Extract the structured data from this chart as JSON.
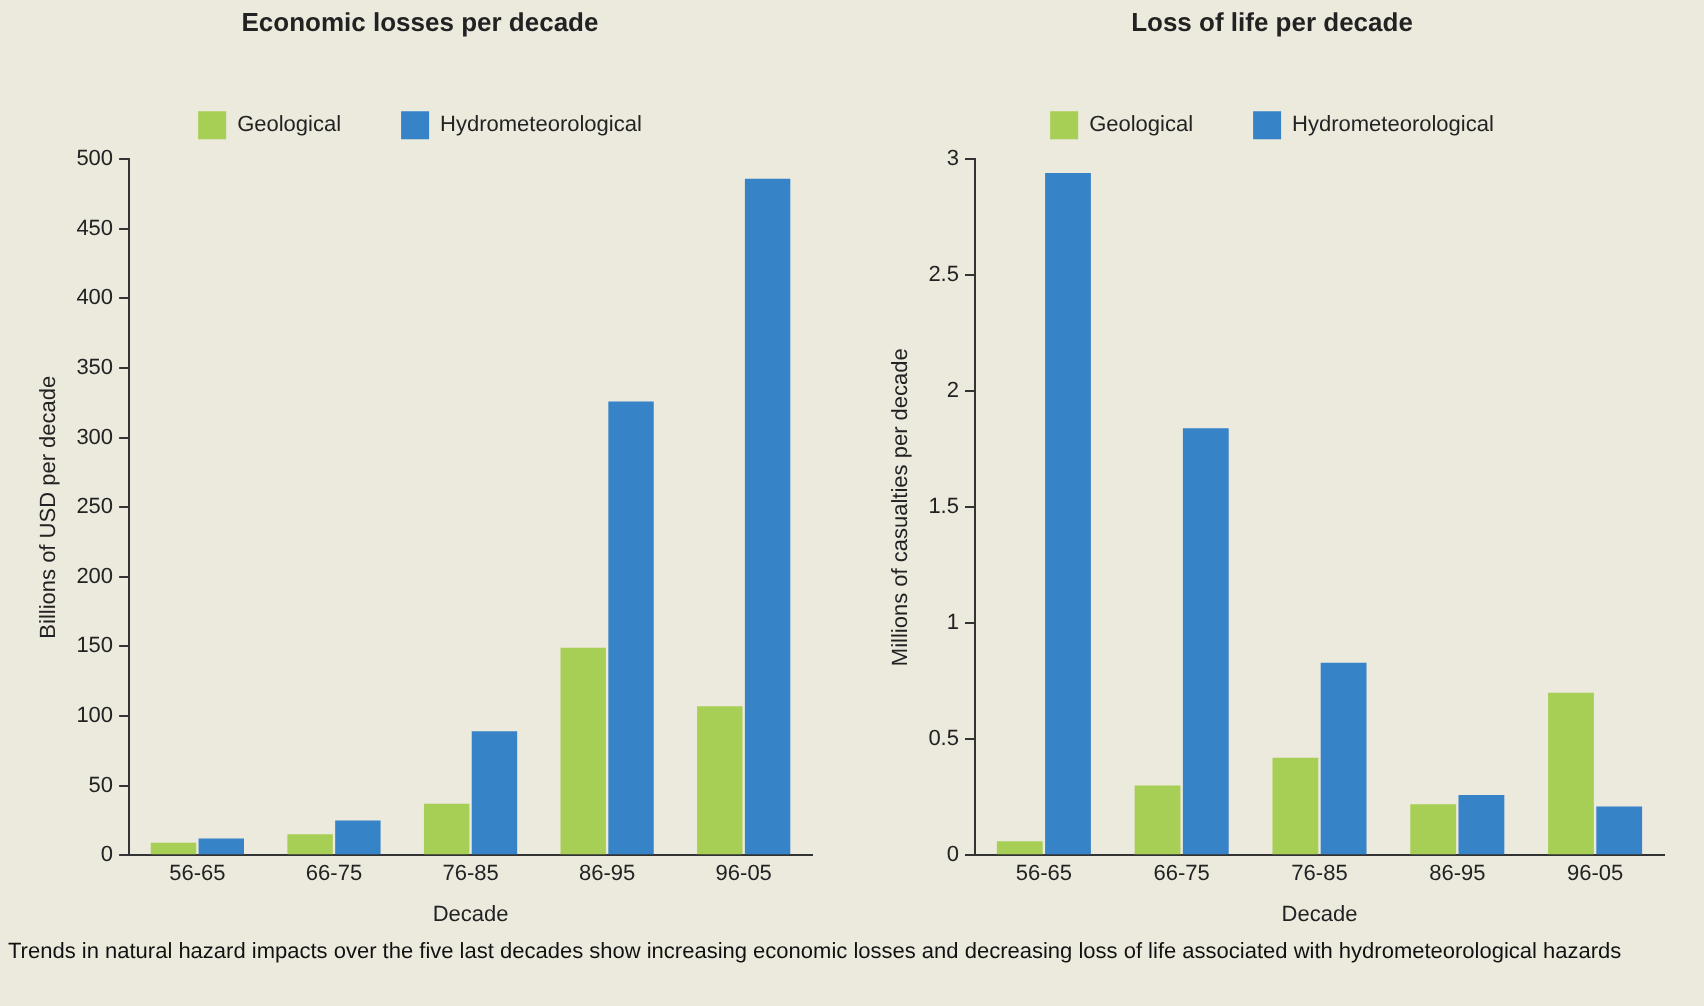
{
  "chart_data": [
    {
      "type": "bar",
      "title": "Economic losses per decade",
      "xlabel": "Decade",
      "ylabel": "Billions of USD per decade",
      "categories": [
        "56-65",
        "66-75",
        "76-85",
        "86-95",
        "96-05"
      ],
      "series": [
        {
          "name": "Geological",
          "color": "#a7cf55",
          "values": [
            9,
            15,
            37,
            149,
            107
          ]
        },
        {
          "name": "Hydrometeorological",
          "color": "#3783c7",
          "values": [
            12,
            25,
            89,
            326,
            486
          ]
        }
      ],
      "ylim": [
        0,
        500
      ],
      "yticks": [
        0,
        50,
        100,
        150,
        200,
        250,
        300,
        350,
        400,
        450,
        500
      ],
      "grid": false,
      "legend": "top",
      "annotations": [
        "Trends in natural hazard impacts over the five last decades show increasing economic losses and decreasing loss of life associated with hydrometeorological hazards"
      ]
    },
    {
      "type": "bar",
      "title": "Loss of life per decade",
      "xlabel": "Decade",
      "ylabel": "Millions of casualties per decade",
      "categories": [
        "56-65",
        "66-75",
        "76-85",
        "86-95",
        "96-05"
      ],
      "series": [
        {
          "name": "Geological",
          "color": "#a7cf55",
          "values": [
            0.06,
            0.3,
            0.42,
            0.22,
            0.7
          ]
        },
        {
          "name": "Hydrometeorological",
          "color": "#3783c7",
          "values": [
            2.94,
            1.84,
            0.83,
            0.26,
            0.21
          ]
        }
      ],
      "ylim": [
        0,
        3
      ],
      "yticks": [
        0,
        0.5,
        1,
        1.5,
        2,
        2.5,
        3
      ],
      "grid": false,
      "legend": "top"
    }
  ]
}
